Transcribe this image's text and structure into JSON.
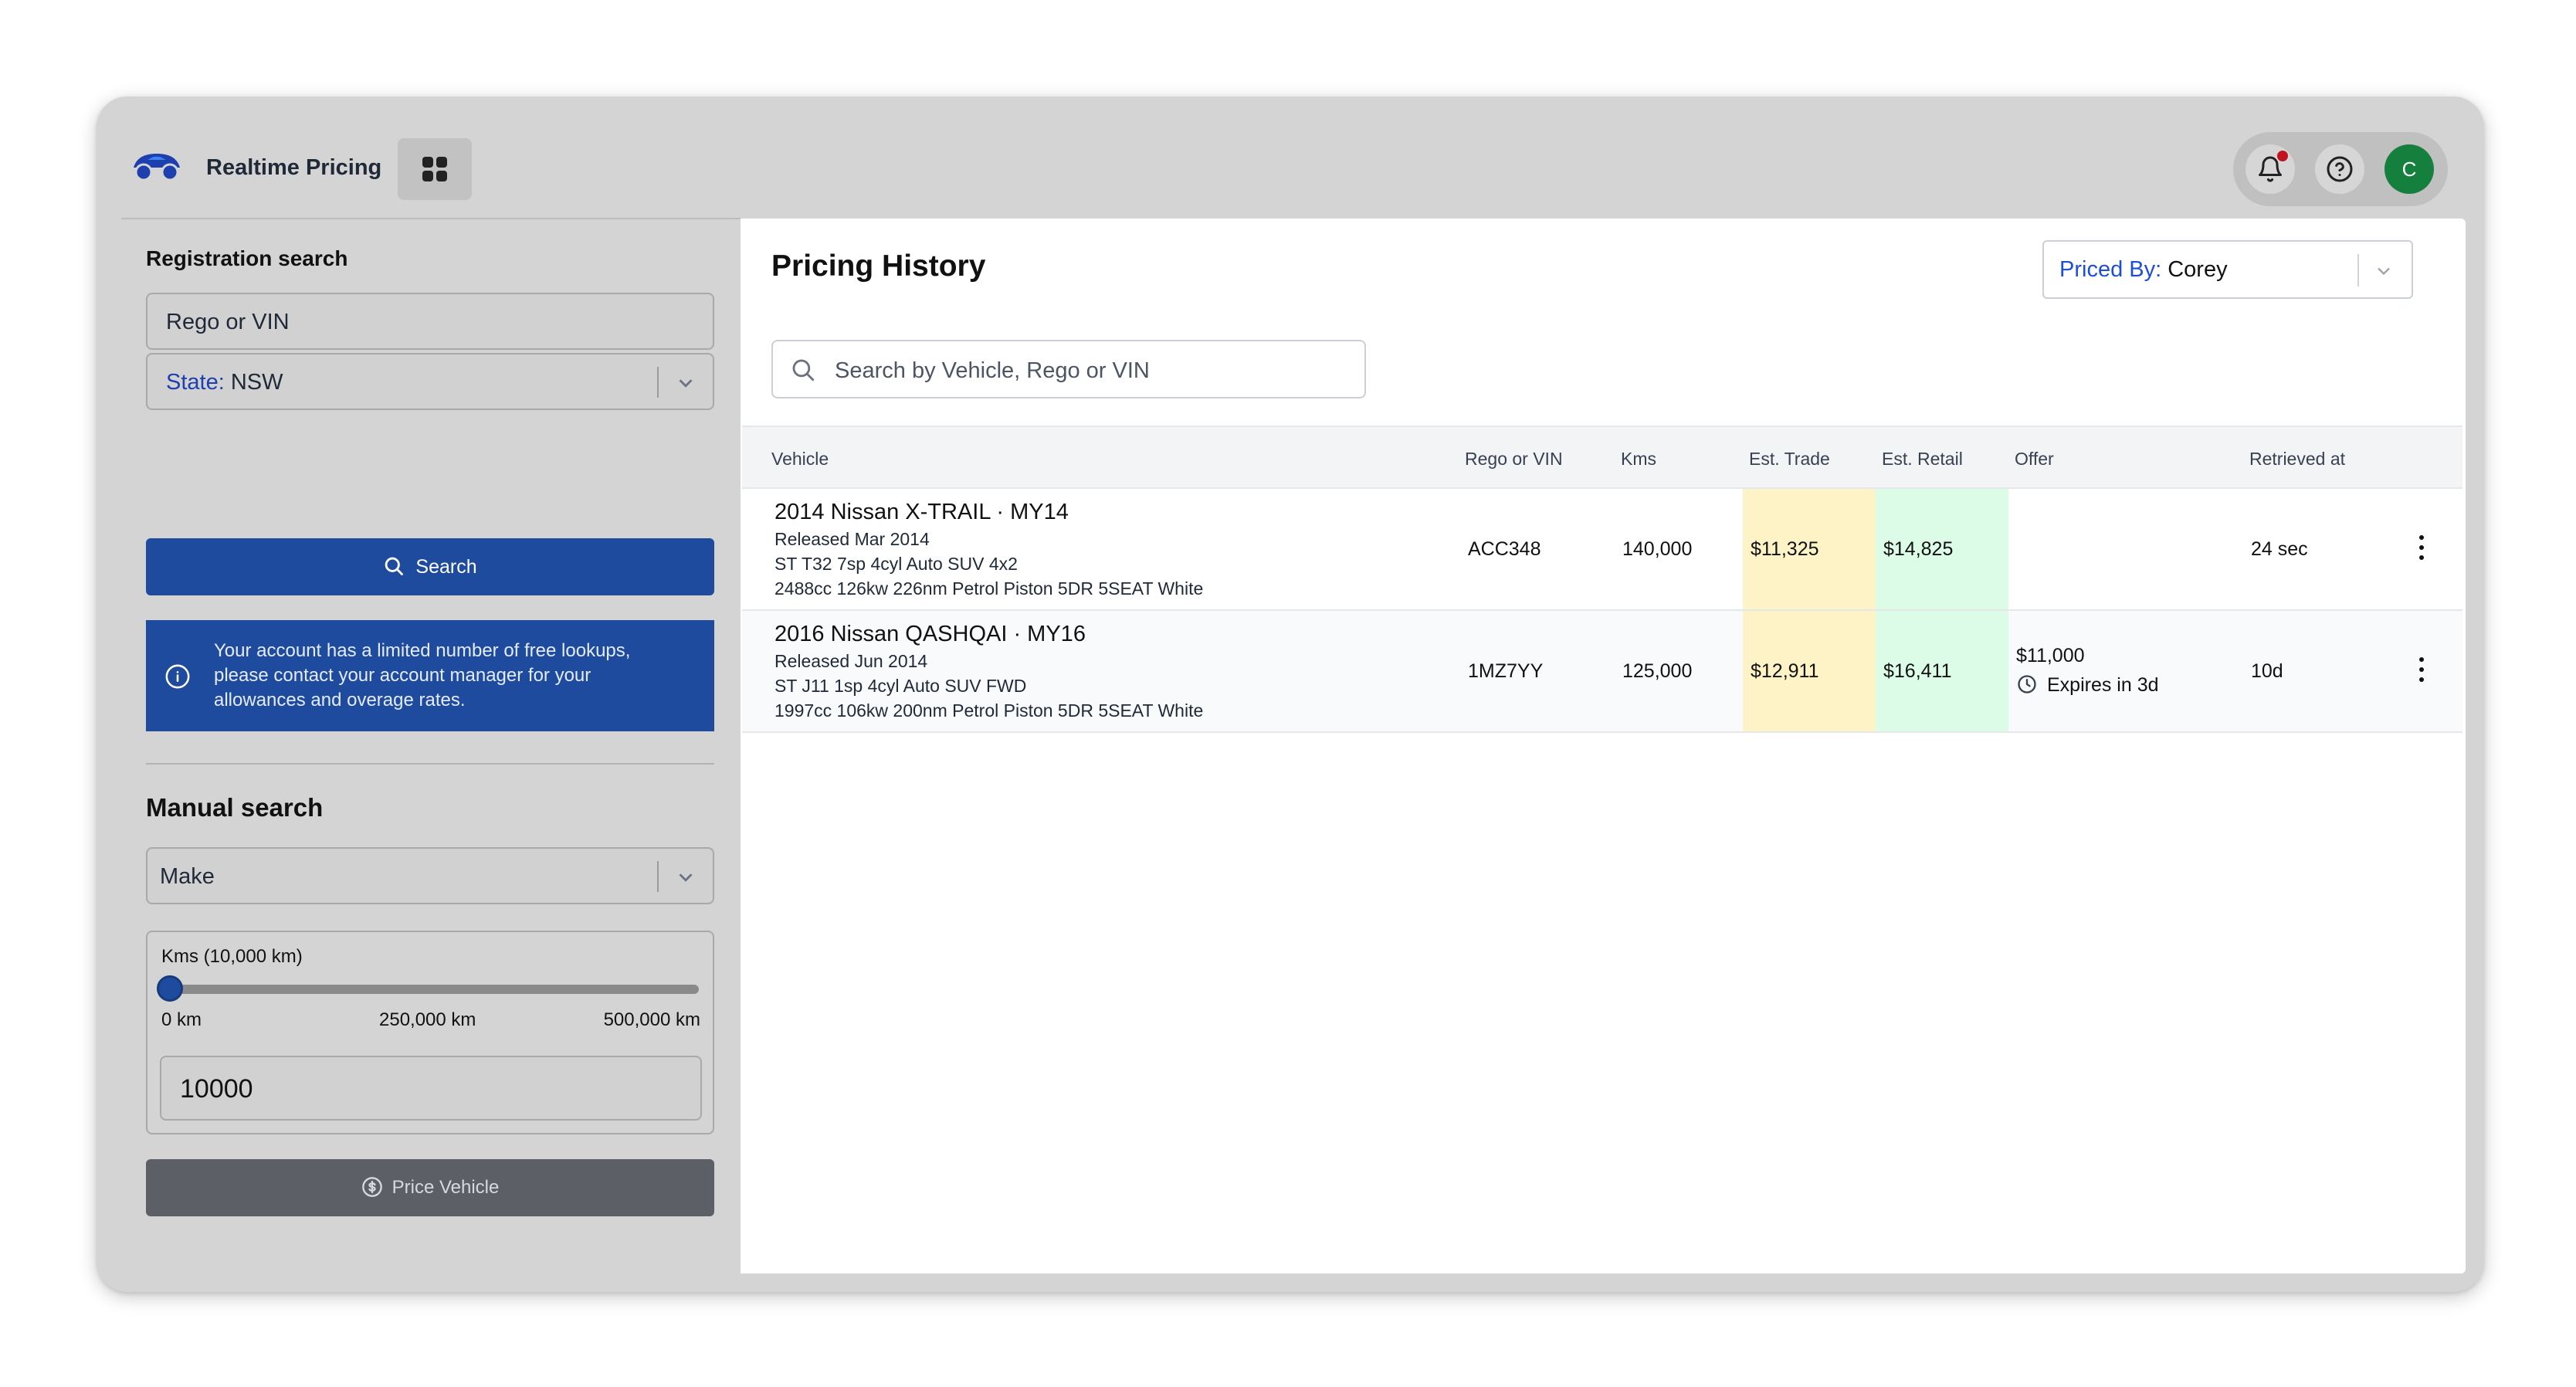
{
  "app": {
    "title": "Realtime Pricing",
    "avatar_initial": "C",
    "icons": [
      "car-logo-icon",
      "apps-grid-icon",
      "bell-icon",
      "help-icon"
    ]
  },
  "sidebar": {
    "registration": {
      "heading": "Registration search",
      "rego_placeholder": "Rego or VIN",
      "state_label": "State:",
      "state_value": "NSW",
      "search_button": "Search",
      "info_message": "Your account has a limited number of free lookups, please contact your account manager for your allowances and overage rates."
    },
    "manual": {
      "heading": "Manual search",
      "make_placeholder": "Make",
      "kms_label": "Kms (10,000 km)",
      "kms_value": 10000,
      "kms_min_label": "0 km",
      "kms_mid_label": "250,000 km",
      "kms_max_label": "500,000 km",
      "kms_input_value": "10000",
      "price_button": "Price Vehicle"
    }
  },
  "main": {
    "title": "Pricing History",
    "priced_by_label": "Priced By:",
    "priced_by_value": "Corey",
    "search_placeholder": "Search by Vehicle, Rego or VIN",
    "columns": [
      "Vehicle",
      "Rego or VIN",
      "Kms",
      "Est. Trade",
      "Est. Retail",
      "Offer",
      "Retrieved at"
    ],
    "rows": [
      {
        "vehicle": "2014 Nissan X-TRAIL · MY14",
        "released": "Released Mar 2014",
        "spec": "ST T32 7sp 4cyl Auto SUV 4x2",
        "engine": "2488cc 126kw 226nm Petrol Piston 5DR 5SEAT White",
        "rego": "ACC348",
        "kms": "140,000",
        "trade": "$11,325",
        "retail": "$14,825",
        "offer": "",
        "offer_expiry": "",
        "retrieved": "24 sec"
      },
      {
        "vehicle": "2016 Nissan QASHQAI · MY16",
        "released": "Released Jun 2014",
        "spec": "ST J11 1sp 4cyl Auto SUV FWD",
        "engine": "1997cc 106kw 200nm Petrol Piston 5DR 5SEAT White",
        "rego": "1MZ7YY",
        "kms": "125,000",
        "trade": "$12,911",
        "retail": "$16,411",
        "offer": "$11,000",
        "offer_expiry": "Expires in 3d",
        "retrieved": "10d"
      }
    ]
  },
  "colors": {
    "primary": "#1e4b9e",
    "trade_highlight": "#fef3c7",
    "retail_highlight": "#dcfce7",
    "avatar": "#15803d",
    "notification": "#c1121f"
  }
}
